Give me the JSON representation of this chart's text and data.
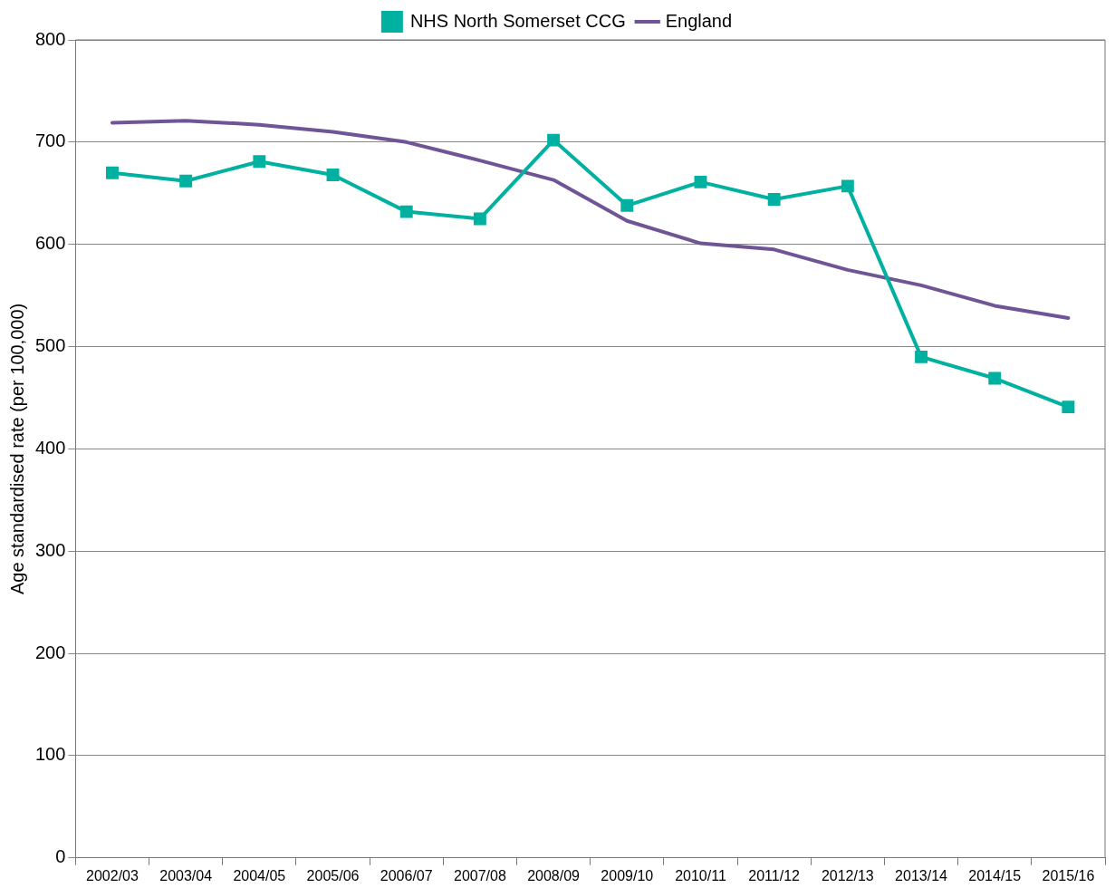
{
  "chart_data": {
    "type": "line",
    "ylabel": "Age standardised rate (per 100,000)",
    "categories": [
      "2002/03",
      "2003/04",
      "2004/05",
      "2005/06",
      "2006/07",
      "2007/08",
      "2008/09",
      "2009/10",
      "2010/11",
      "2011/12",
      "2012/13",
      "2013/14",
      "2014/15",
      "2015/16"
    ],
    "series": [
      {
        "name": "NHS North Somerset CCG",
        "color": "#00b0a0",
        "marker": "square",
        "values": [
          670,
          662,
          681,
          668,
          632,
          625,
          702,
          638,
          661,
          644,
          657,
          490,
          469,
          441
        ]
      },
      {
        "name": "England",
        "color": "#6f5596",
        "marker": "none",
        "values": [
          719,
          721,
          717,
          710,
          700,
          682,
          663,
          623,
          601,
          595,
          575,
          560,
          540,
          528
        ]
      }
    ],
    "ylim": [
      0,
      800
    ],
    "yticks": [
      0,
      100,
      200,
      300,
      400,
      500,
      600,
      700,
      800
    ],
    "grid": "y",
    "legend": "top",
    "line_style": "solid"
  }
}
